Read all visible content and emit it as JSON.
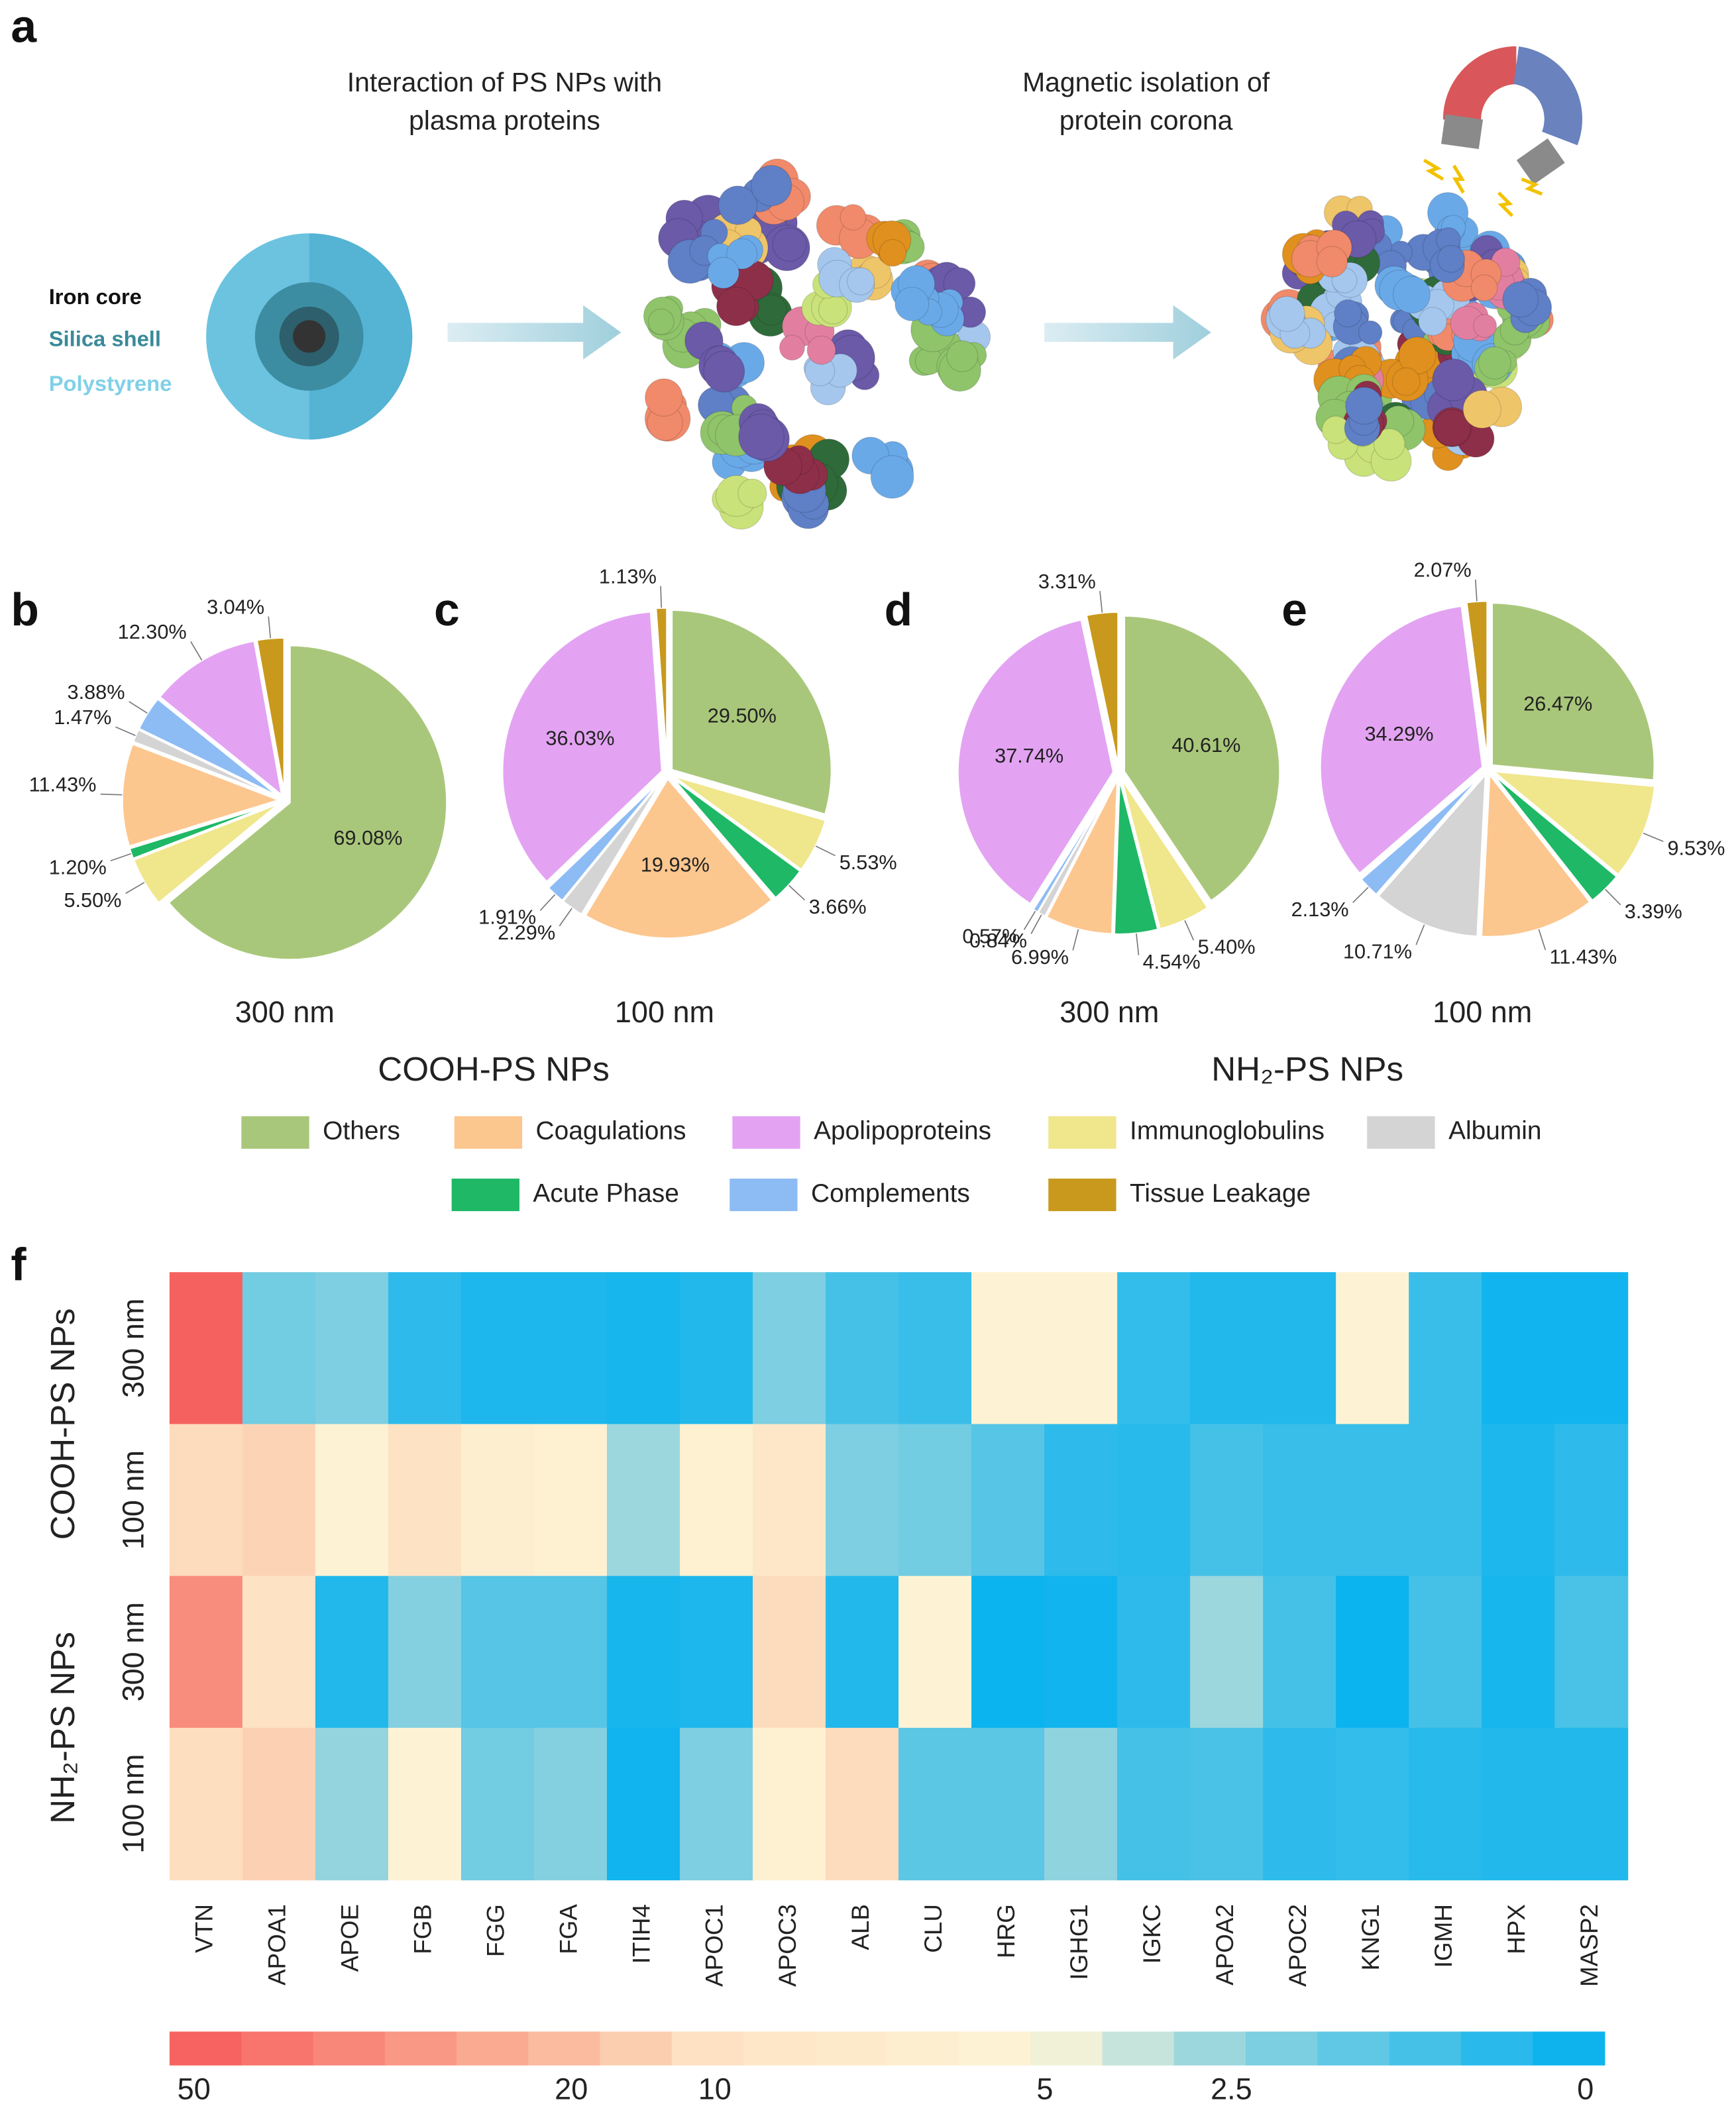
{
  "schematic": {
    "panel": "a",
    "step1": [
      "Interaction of PS NPs with",
      "plasma proteins"
    ],
    "step2": [
      "Magnetic isolation of",
      "protein corona"
    ],
    "layers": [
      "Iron core",
      "Silica shell",
      "Polystyrene"
    ]
  },
  "groups": [
    "COOH-PS NPs",
    "NH₂-PS NPs"
  ],
  "legend": [
    {
      "name": "Others",
      "color": "#a9c77a"
    },
    {
      "name": "Coagulations",
      "color": "#fcc68f"
    },
    {
      "name": "Apolipoproteins",
      "color": "#e3a3f2"
    },
    {
      "name": "Immunoglobulins",
      "color": "#f0e68c"
    },
    {
      "name": "Albumin",
      "color": "#d4d4d4"
    },
    {
      "name": "Acute Phase",
      "color": "#1fb866"
    },
    {
      "name": "Complements",
      "color": "#8dbcf5"
    },
    {
      "name": "Tissue Leakage",
      "color": "#c8991c"
    }
  ],
  "chart_data": [
    {
      "type": "pie",
      "panel": "b",
      "title": "300 nm",
      "categories": [
        "Others",
        "Immunoglobulins",
        "Acute Phase",
        "Coagulations",
        "Albumin",
        "Complements",
        "Apolipoproteins",
        "Tissue Leakage"
      ],
      "values": [
        69.08,
        5.5,
        1.2,
        11.43,
        1.47,
        3.88,
        12.3,
        3.04
      ],
      "value_labels": [
        "69.08%",
        "5.50%",
        "1.20%",
        "11.43%",
        "1.47%",
        "3.88%",
        "12.30%",
        "3.04%"
      ]
    },
    {
      "type": "pie",
      "panel": "c",
      "title": "100 nm",
      "categories": [
        "Others",
        "Immunoglobulins",
        "Acute Phase",
        "Coagulations",
        "Albumin",
        "Complements",
        "Apolipoproteins",
        "Tissue Leakage"
      ],
      "values": [
        29.5,
        5.53,
        3.66,
        19.93,
        2.29,
        1.91,
        36.03,
        1.13
      ],
      "value_labels": [
        "29.50%",
        "5.53%",
        "3.66%",
        "19.93%",
        "2.29%",
        "1.91%",
        "36.03%",
        "1.13%"
      ]
    },
    {
      "type": "pie",
      "panel": "d",
      "title": "300 nm",
      "categories": [
        "Others",
        "Immunoglobulins",
        "Acute Phase",
        "Coagulations",
        "Albumin",
        "Complements",
        "Apolipoproteins",
        "Tissue Leakage"
      ],
      "values": [
        40.61,
        5.4,
        4.54,
        6.99,
        0.84,
        0.57,
        37.74,
        3.31
      ],
      "value_labels": [
        "40.61%",
        "5.40%",
        "4.54%",
        "6.99%",
        "0.84%",
        "0.57%",
        "37.74%",
        "3.31%"
      ]
    },
    {
      "type": "pie",
      "panel": "e",
      "title": "100 nm",
      "categories": [
        "Others",
        "Immunoglobulins",
        "Acute Phase",
        "Coagulations",
        "Albumin",
        "Complements",
        "Apolipoproteins",
        "Tissue Leakage"
      ],
      "values": [
        26.47,
        9.53,
        3.39,
        11.43,
        10.71,
        2.13,
        34.29,
        2.07
      ],
      "value_labels": [
        "26.47%",
        "9.53%",
        "3.39%",
        "11.43%",
        "10.71%",
        "2.13%",
        "34.29%",
        "2.07%"
      ]
    },
    {
      "type": "heatmap",
      "panel": "f",
      "x": [
        "VTN",
        "APOA1",
        "APOE",
        "FGB",
        "FGG",
        "FGA",
        "ITIH4",
        "APOC1",
        "APOC3",
        "ALB",
        "CLU",
        "HRG",
        "IGHG1",
        "IGKC",
        "APOA2",
        "APOC2",
        "KNG1",
        "IGMH",
        "HPX",
        "MASP2"
      ],
      "y": [
        "300 nm",
        "100 nm",
        "300 nm",
        "100 nm"
      ],
      "y_groups": [
        "COOH-PS NPs",
        "NH₂-PS NPs"
      ],
      "values": [
        [
          48,
          2,
          2.2,
          0.8,
          0.5,
          0.5,
          0.4,
          0.6,
          2.2,
          1.2,
          1.0,
          5.5,
          5.5,
          0.9,
          0.6,
          0.6,
          5.5,
          1.0,
          0.3,
          0.3
        ],
        [
          12,
          14,
          5.5,
          10,
          7,
          6,
          2.8,
          6,
          9,
          2.2,
          2.0,
          1.5,
          0.8,
          0.7,
          1.2,
          1.0,
          1.0,
          1.0,
          0.5,
          0.8
        ],
        [
          35,
          10,
          0.6,
          2.3,
          1.5,
          1.5,
          0.4,
          0.5,
          12,
          0.6,
          5.5,
          0.2,
          0.3,
          0.8,
          2.8,
          1.2,
          0.2,
          1.2,
          0.4,
          1.3
        ],
        [
          11,
          15,
          2.6,
          5.5,
          2.0,
          2.3,
          0.3,
          2.2,
          6,
          12,
          1.6,
          1.6,
          2.5,
          1.2,
          1.3,
          0.8,
          0.9,
          0.7,
          0.6,
          0.6
        ]
      ],
      "colorscale": [
        {
          "value": 50,
          "color": "#f55a5a"
        },
        {
          "value": 20,
          "color": "#fbbd9f"
        },
        {
          "value": 10,
          "color": "#fde3c4"
        },
        {
          "value": 5,
          "color": "#fdf5d6"
        },
        {
          "value": 2.5,
          "color": "#8fd3df"
        },
        {
          "value": 0,
          "color": "#00b0f0"
        }
      ],
      "colorbar_ticks": [
        50,
        20,
        10,
        5,
        2.5,
        0
      ]
    }
  ]
}
